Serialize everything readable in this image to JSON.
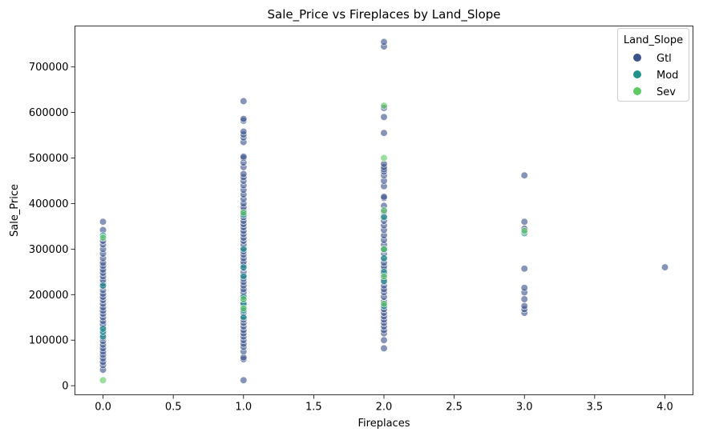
{
  "chart_data": {
    "type": "scatter",
    "title": "Sale_Price vs Fireplaces by Land_Slope",
    "xlabel": "Fireplaces",
    "ylabel": "Sale_Price",
    "xlim": [
      -0.2,
      4.2
    ],
    "ylim": [
      -20000,
      790000
    ],
    "xticks": [
      0.0,
      0.5,
      1.0,
      1.5,
      2.0,
      2.5,
      3.0,
      3.5,
      4.0
    ],
    "xtick_labels": [
      "0.0",
      "0.5",
      "1.0",
      "1.5",
      "2.0",
      "2.5",
      "3.0",
      "3.5",
      "4.0"
    ],
    "yticks": [
      0,
      100000,
      200000,
      300000,
      400000,
      500000,
      600000,
      700000
    ],
    "ytick_labels": [
      "0",
      "100000",
      "200000",
      "300000",
      "400000",
      "500000",
      "600000",
      "700000"
    ],
    "grid": false,
    "legend": {
      "title": "Land_Slope",
      "placement": "top-right"
    },
    "series": [
      {
        "name": "Gtl",
        "color": "#3b528b",
        "points": [
          [
            0,
            35000
          ],
          [
            0,
            45000
          ],
          [
            0,
            52000
          ],
          [
            0,
            60000
          ],
          [
            0,
            68000
          ],
          [
            0,
            75000
          ],
          [
            0,
            82000
          ],
          [
            0,
            90000
          ],
          [
            0,
            98000
          ],
          [
            0,
            105000
          ],
          [
            0,
            112000
          ],
          [
            0,
            120000
          ],
          [
            0,
            128000
          ],
          [
            0,
            135000
          ],
          [
            0,
            142000
          ],
          [
            0,
            150000
          ],
          [
            0,
            158000
          ],
          [
            0,
            165000
          ],
          [
            0,
            172000
          ],
          [
            0,
            180000
          ],
          [
            0,
            188000
          ],
          [
            0,
            195000
          ],
          [
            0,
            202000
          ],
          [
            0,
            210000
          ],
          [
            0,
            218000
          ],
          [
            0,
            225000
          ],
          [
            0,
            232000
          ],
          [
            0,
            240000
          ],
          [
            0,
            248000
          ],
          [
            0,
            255000
          ],
          [
            0,
            263000
          ],
          [
            0,
            270000
          ],
          [
            0,
            280000
          ],
          [
            0,
            290000
          ],
          [
            0,
            300000
          ],
          [
            0,
            310000
          ],
          [
            0,
            318000
          ],
          [
            0,
            342000
          ],
          [
            0,
            360000
          ],
          [
            1,
            12000
          ],
          [
            1,
            58000
          ],
          [
            1,
            62000
          ],
          [
            1,
            75000
          ],
          [
            1,
            85000
          ],
          [
            1,
            92000
          ],
          [
            1,
            100000
          ],
          [
            1,
            108000
          ],
          [
            1,
            115000
          ],
          [
            1,
            122000
          ],
          [
            1,
            130000
          ],
          [
            1,
            138000
          ],
          [
            1,
            145000
          ],
          [
            1,
            152000
          ],
          [
            1,
            160000
          ],
          [
            1,
            168000
          ],
          [
            1,
            175000
          ],
          [
            1,
            182000
          ],
          [
            1,
            190000
          ],
          [
            1,
            198000
          ],
          [
            1,
            205000
          ],
          [
            1,
            212000
          ],
          [
            1,
            220000
          ],
          [
            1,
            228000
          ],
          [
            1,
            235000
          ],
          [
            1,
            242000
          ],
          [
            1,
            250000
          ],
          [
            1,
            258000
          ],
          [
            1,
            265000
          ],
          [
            1,
            272000
          ],
          [
            1,
            280000
          ],
          [
            1,
            288000
          ],
          [
            1,
            295000
          ],
          [
            1,
            302000
          ],
          [
            1,
            310000
          ],
          [
            1,
            318000
          ],
          [
            1,
            325000
          ],
          [
            1,
            333000
          ],
          [
            1,
            340000
          ],
          [
            1,
            348000
          ],
          [
            1,
            355000
          ],
          [
            1,
            362000
          ],
          [
            1,
            370000
          ],
          [
            1,
            378000
          ],
          [
            1,
            385000
          ],
          [
            1,
            392000
          ],
          [
            1,
            400000
          ],
          [
            1,
            410000
          ],
          [
            1,
            420000
          ],
          [
            1,
            430000
          ],
          [
            1,
            440000
          ],
          [
            1,
            450000
          ],
          [
            1,
            458000
          ],
          [
            1,
            465000
          ],
          [
            1,
            480000
          ],
          [
            1,
            490000
          ],
          [
            1,
            500000
          ],
          [
            1,
            503000
          ],
          [
            1,
            535000
          ],
          [
            1,
            545000
          ],
          [
            1,
            552000
          ],
          [
            1,
            558000
          ],
          [
            1,
            582000
          ],
          [
            1,
            586000
          ],
          [
            1,
            625000
          ],
          [
            2,
            82000
          ],
          [
            2,
            100000
          ],
          [
            2,
            115000
          ],
          [
            2,
            122000
          ],
          [
            2,
            130000
          ],
          [
            2,
            138000
          ],
          [
            2,
            145000
          ],
          [
            2,
            152000
          ],
          [
            2,
            160000
          ],
          [
            2,
            168000
          ],
          [
            2,
            175000
          ],
          [
            2,
            185000
          ],
          [
            2,
            195000
          ],
          [
            2,
            205000
          ],
          [
            2,
            212000
          ],
          [
            2,
            220000
          ],
          [
            2,
            228000
          ],
          [
            2,
            235000
          ],
          [
            2,
            245000
          ],
          [
            2,
            255000
          ],
          [
            2,
            262000
          ],
          [
            2,
            270000
          ],
          [
            2,
            280000
          ],
          [
            2,
            290000
          ],
          [
            2,
            298000
          ],
          [
            2,
            310000
          ],
          [
            2,
            320000
          ],
          [
            2,
            330000
          ],
          [
            2,
            342000
          ],
          [
            2,
            352000
          ],
          [
            2,
            362000
          ],
          [
            2,
            372000
          ],
          [
            2,
            382000
          ],
          [
            2,
            395000
          ],
          [
            2,
            412000
          ],
          [
            2,
            415000
          ],
          [
            2,
            438000
          ],
          [
            2,
            450000
          ],
          [
            2,
            462000
          ],
          [
            2,
            470000
          ],
          [
            2,
            475000
          ],
          [
            2,
            480000
          ],
          [
            2,
            487000
          ],
          [
            2,
            555000
          ],
          [
            2,
            590000
          ],
          [
            2,
            610000
          ],
          [
            2,
            745000
          ],
          [
            2,
            755000
          ],
          [
            3,
            160000
          ],
          [
            3,
            168000
          ],
          [
            3,
            175000
          ],
          [
            3,
            190000
          ],
          [
            3,
            205000
          ],
          [
            3,
            215000
          ],
          [
            3,
            257000
          ],
          [
            3,
            345000
          ],
          [
            3,
            360000
          ],
          [
            3,
            462000
          ],
          [
            4,
            260000
          ]
        ]
      },
      {
        "name": "Mod",
        "color": "#21918c",
        "points": [
          [
            0,
            108000
          ],
          [
            0,
            118000
          ],
          [
            0,
            125000
          ],
          [
            0,
            220000
          ],
          [
            0,
            330000
          ],
          [
            1,
            150000
          ],
          [
            1,
            165000
          ],
          [
            1,
            180000
          ],
          [
            1,
            195000
          ],
          [
            1,
            240000
          ],
          [
            1,
            260000
          ],
          [
            1,
            300000
          ],
          [
            1,
            375000
          ],
          [
            2,
            175000
          ],
          [
            2,
            230000
          ],
          [
            2,
            250000
          ],
          [
            2,
            280000
          ],
          [
            2,
            300000
          ],
          [
            2,
            370000
          ],
          [
            3,
            335000
          ]
        ]
      },
      {
        "name": "Sev",
        "color": "#5ec962",
        "points": [
          [
            0,
            12000
          ],
          [
            0,
            325000
          ],
          [
            1,
            170000
          ],
          [
            1,
            190000
          ],
          [
            1,
            380000
          ],
          [
            2,
            180000
          ],
          [
            2,
            240000
          ],
          [
            2,
            300000
          ],
          [
            2,
            385000
          ],
          [
            2,
            500000
          ],
          [
            2,
            615000
          ],
          [
            3,
            340000
          ]
        ]
      }
    ]
  }
}
